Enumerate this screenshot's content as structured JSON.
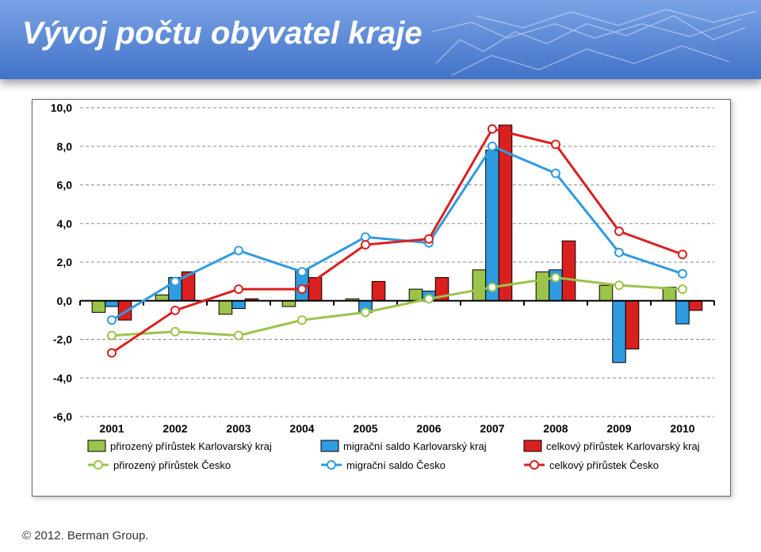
{
  "header": {
    "title": "Vývoj počtu obyvatel kraje"
  },
  "footer": {
    "text": "© 2012. Berman Group."
  },
  "chart": {
    "type": "bar+line",
    "categories": [
      "2001",
      "2002",
      "2003",
      "2004",
      "2005",
      "2006",
      "2007",
      "2008",
      "2009",
      "2010"
    ],
    "ylim": [
      -6.0,
      10.0
    ],
    "ytick_step": 2.0,
    "tick_decimals": 1,
    "locale_decimal": ",",
    "background_color": "#ffffff",
    "gridline_color": "#8a8a8a",
    "gridline_dash": "4 3",
    "axis_color": "#000000",
    "axis_width": 2,
    "axis_label_fontsize": 14,
    "axis_label_weight": "bold",
    "legend_fontsize": 13,
    "bar_group_width": 0.62,
    "bar_border_color": "#000000",
    "bar_border_width": 1,
    "marker_radius": 5,
    "marker_fill": "#ffffff",
    "marker_stroke_width": 2,
    "line_width": 3,
    "colors": {
      "green": "#9cc34a",
      "blue": "#2f9be0",
      "red": "#d9201f"
    },
    "bar_series": [
      {
        "key": "nat_kv",
        "label": "přirozený přírůstek Karlovarský kraj",
        "color": "green",
        "values": [
          -0.6,
          0.3,
          -0.7,
          -0.3,
          0.1,
          0.6,
          1.6,
          1.5,
          0.8,
          0.7
        ]
      },
      {
        "key": "mig_kv",
        "label": "migrační saldo Karlovarský kraj",
        "color": "blue",
        "values": [
          -0.3,
          1.2,
          -0.4,
          1.6,
          -0.6,
          0.5,
          7.8,
          1.6,
          -3.2,
          -1.2
        ]
      },
      {
        "key": "tot_kv",
        "label": "celkový přírůstek Karlovarský kraj",
        "color": "red",
        "values": [
          -1.0,
          1.5,
          0.1,
          1.2,
          1.0,
          1.2,
          9.1,
          3.1,
          -2.5,
          -0.5
        ]
      }
    ],
    "line_series": [
      {
        "key": "nat_cz",
        "label": "přirozený přírůstek Česko",
        "color": "green",
        "values": [
          -1.8,
          -1.6,
          -1.8,
          -1.0,
          -0.6,
          0.1,
          0.7,
          1.2,
          0.8,
          0.6
        ]
      },
      {
        "key": "mig_cz",
        "label": "migrační saldo Česko",
        "color": "blue",
        "values": [
          -1.0,
          1.0,
          2.6,
          1.5,
          3.3,
          3.0,
          8.0,
          6.6,
          2.5,
          1.4
        ]
      },
      {
        "key": "tot_cz",
        "label": "celkový přírůstek Česko",
        "color": "red",
        "values": [
          -2.7,
          -0.5,
          0.6,
          0.6,
          2.9,
          3.2,
          8.9,
          8.1,
          3.6,
          2.4
        ]
      }
    ]
  }
}
